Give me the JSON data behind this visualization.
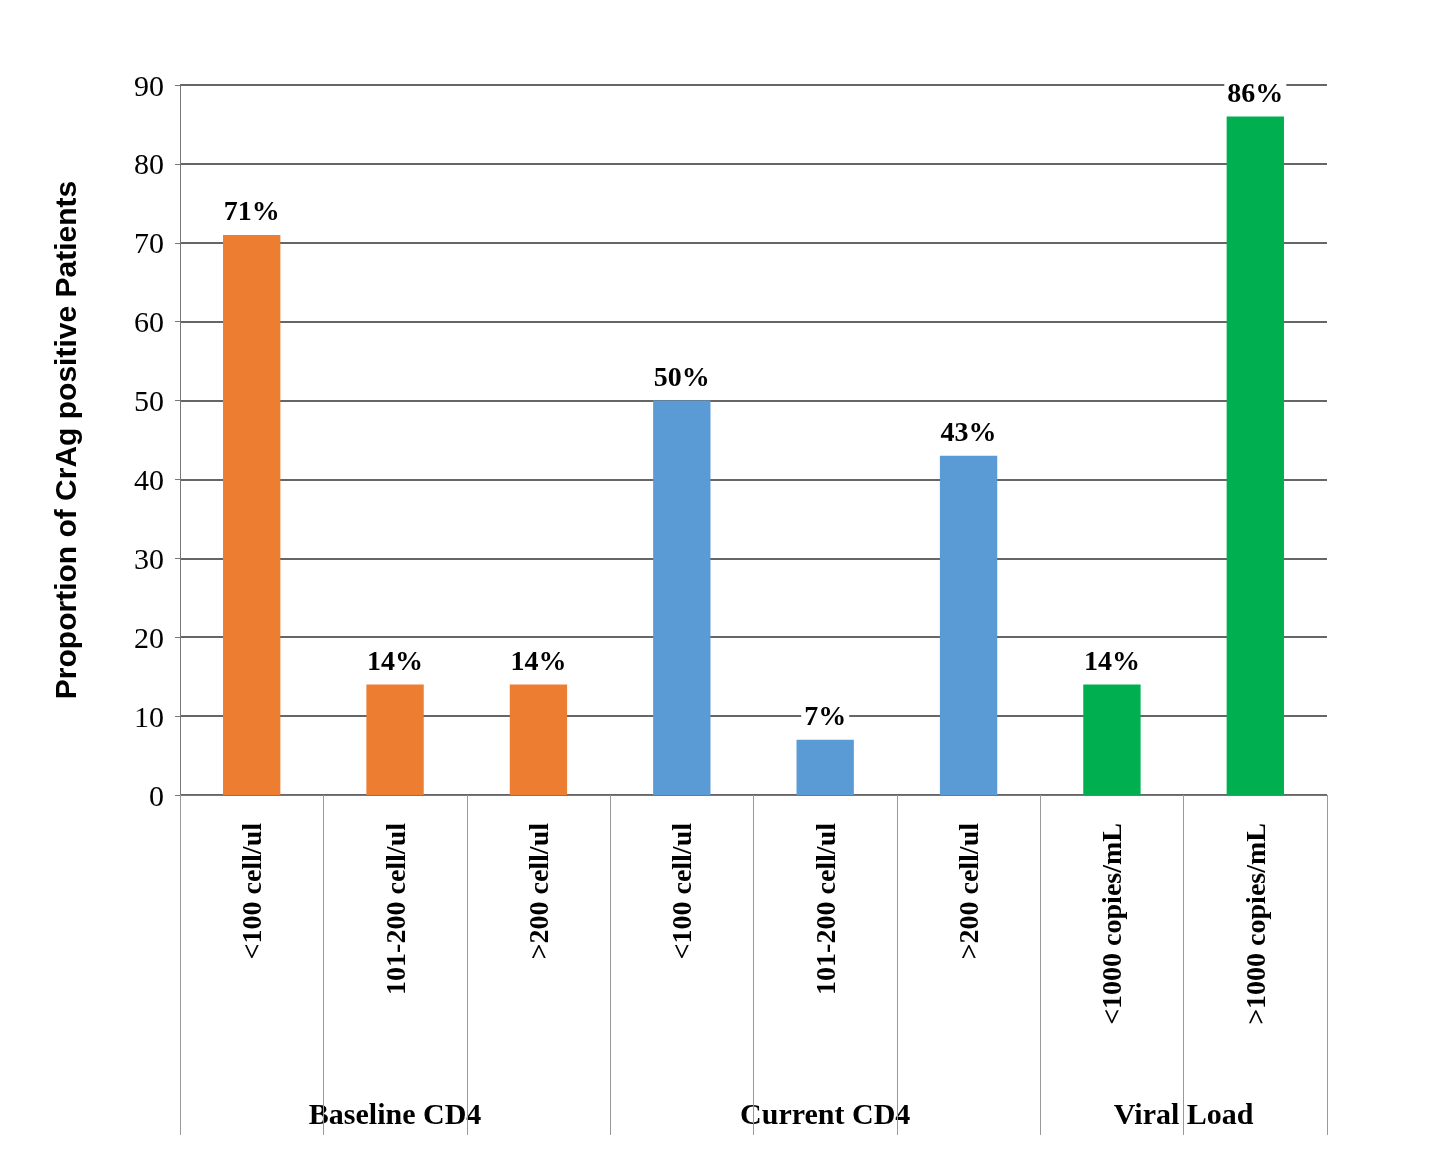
{
  "chart_data": {
    "type": "bar",
    "ylabel": "Proportion of CrAg positive Patients",
    "categories": [
      "<100 cell/ul",
      "101-200 cell/ul",
      ">200 cell/ul",
      "<100 cell/ul",
      "101-200 cell/ul",
      ">200 cell/ul",
      "<1000 copies/mL",
      ">1000 copies/mL"
    ],
    "stacked": true,
    "annotations": [
      "Baseline CD4",
      "Current CD4",
      "Viral Load"
    ],
    "series": [
      {
        "color": "#ed7d31",
        "values": [
          71,
          14,
          14,
          null,
          null,
          null,
          null,
          null
        ],
        "value_labels": [
          "71%",
          "14%",
          "14%",
          null,
          null,
          null,
          null,
          null
        ]
      },
      {
        "color": "#5b9bd5",
        "values": [
          null,
          null,
          null,
          50,
          7,
          43,
          null,
          null
        ],
        "value_labels": [
          null,
          null,
          null,
          "50%",
          "7%",
          "43%",
          null,
          null
        ]
      },
      {
        "color": "#00b050",
        "values": [
          null,
          null,
          null,
          null,
          null,
          null,
          14,
          86
        ],
        "value_labels": [
          null,
          null,
          null,
          null,
          null,
          null,
          "14%",
          "86%"
        ]
      }
    ],
    "ylim": [
      0,
      90
    ],
    "yticks": [
      0,
      10,
      20,
      30,
      40,
      50,
      60,
      70,
      80,
      90
    ],
    "grid": "y"
  }
}
